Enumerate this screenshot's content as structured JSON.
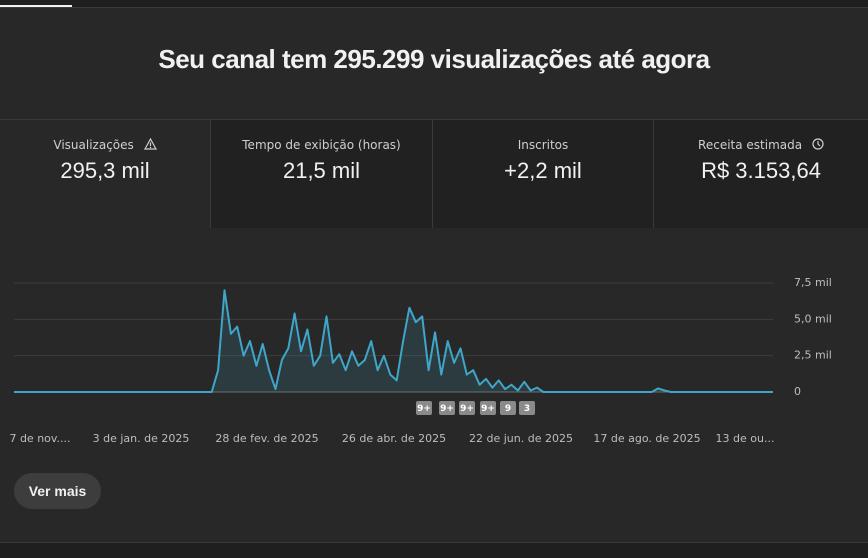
{
  "heading": "Seu canal tem 295.299 visualizações até agora",
  "metrics": [
    {
      "label": "Visualizações",
      "value": "295,3 mil"
    },
    {
      "label": "Tempo de exibição (horas)",
      "value": "21,5 mil"
    },
    {
      "label": "Inscritos",
      "value": "+2,2 mil"
    },
    {
      "label": "Receita estimada",
      "value": "R$ 3.153,64"
    }
  ],
  "chart_data": {
    "type": "line",
    "xtick_labels": [
      "7 de nov....",
      "3 de jan. de 2025",
      "28 de fev. de 2025",
      "26 de abr. de 2025",
      "22 de jun. de 2025",
      "17 de ago. de 2025",
      "13 de ou..."
    ],
    "series": [
      {
        "name": "Visualizações",
        "color": "#3ea6c9",
        "values": [
          0,
          0,
          0,
          0,
          0,
          0,
          0,
          0,
          0,
          0,
          0,
          0,
          0,
          0,
          0,
          0,
          0,
          0,
          0,
          0,
          0,
          0,
          0,
          0,
          0,
          0,
          0,
          0,
          0,
          0,
          0,
          0,
          1500,
          7000,
          4000,
          4500,
          2500,
          3500,
          1800,
          3300,
          1500,
          200,
          2200,
          3000,
          5400,
          2800,
          4300,
          1800,
          2500,
          5200,
          2000,
          2600,
          1500,
          2800,
          1800,
          2200,
          3500,
          1500,
          2500,
          1200,
          800,
          3500,
          5800,
          4800,
          5200,
          1500,
          4100,
          1200,
          3500,
          2000,
          3000,
          1200,
          1500,
          500,
          900,
          300,
          800,
          200,
          500,
          100,
          700,
          100,
          300,
          0,
          0,
          0,
          0,
          0,
          0,
          0,
          0,
          0,
          0,
          0,
          0,
          0,
          0,
          0,
          0,
          0,
          0,
          250,
          100,
          0,
          0,
          0,
          0,
          0,
          0,
          0,
          0,
          0,
          0,
          0,
          0,
          0,
          0,
          0,
          0,
          0
        ]
      }
    ],
    "ylim": [
      0,
      7500
    ],
    "yticks": [
      {
        "value": 0,
        "label": "0"
      },
      {
        "value": 2500,
        "label": "2,5 mil"
      },
      {
        "value": 5000,
        "label": "5,0 mil"
      },
      {
        "value": 7500,
        "label": "7,5 mil"
      }
    ],
    "grid": true,
    "annotations": [
      "9+",
      "9+",
      "9+",
      "9+",
      "9",
      "3"
    ]
  },
  "button": "Ver mais"
}
